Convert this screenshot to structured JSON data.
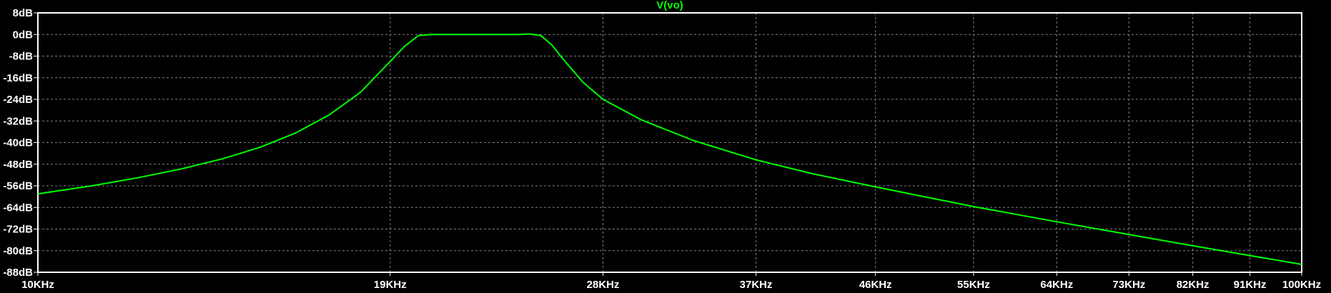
{
  "chart_data": {
    "type": "line",
    "title": "V(vo)",
    "x_scale": "log",
    "xlim": [
      10000,
      100000
    ],
    "ylim": [
      -88,
      8
    ],
    "grid": true,
    "x_ticks": [
      10000,
      19000,
      28000,
      37000,
      46000,
      55000,
      64000,
      73000,
      82000,
      91000,
      100000
    ],
    "x_tick_labels": [
      "10KHz",
      "19KHz",
      "28KHz",
      "37KHz",
      "46KHz",
      "55KHz",
      "64KHz",
      "73KHz",
      "82KHz",
      "91KHz",
      "100KHz"
    ],
    "y_ticks": [
      8,
      0,
      -8,
      -16,
      -24,
      -32,
      -40,
      -48,
      -56,
      -64,
      -72,
      -80,
      -88
    ],
    "y_tick_labels": [
      "8dB",
      "0dB",
      "-8dB",
      "-16dB",
      "-24dB",
      "-32dB",
      "-40dB",
      "-48dB",
      "-56dB",
      "-64dB",
      "-72dB",
      "-80dB",
      "-88dB"
    ],
    "series": [
      {
        "name": "V(vo)",
        "x": [
          10000,
          11000,
          12000,
          13000,
          14000,
          15000,
          16000,
          17000,
          18000,
          19000,
          19500,
          20000,
          20500,
          21000,
          22000,
          23000,
          24000,
          24500,
          25000,
          25500,
          26000,
          27000,
          28000,
          30000,
          33000,
          37000,
          41000,
          46000,
          55000,
          64000,
          73000,
          82000,
          91000,
          100000
        ],
        "y": [
          -59,
          -56.1,
          -53,
          -49.7,
          -46,
          -41.7,
          -36.4,
          -29.8,
          -21.4,
          -10,
          -4.4,
          -0.4,
          0,
          0,
          0,
          0,
          0,
          0.2,
          -0.4,
          -3.8,
          -8.8,
          -17.7,
          -24,
          -31.5,
          -39.2,
          -46.4,
          -51.5,
          -56.4,
          -63.7,
          -69.3,
          -74,
          -78.2,
          -81.8,
          -85.1
        ]
      }
    ]
  },
  "colors": {
    "background": "#000000",
    "grid": "#808080",
    "axis_frame": "#ffffff",
    "trace": "#00ff00",
    "text": "#ffffff"
  }
}
